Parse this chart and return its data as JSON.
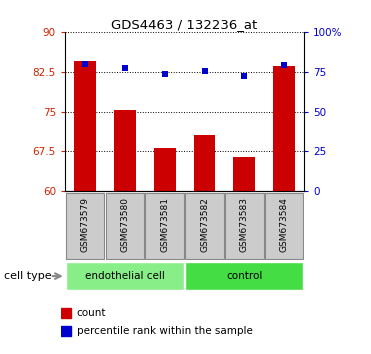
{
  "title": "GDS4463 / 132236_at",
  "samples": [
    "GSM673579",
    "GSM673580",
    "GSM673581",
    "GSM673582",
    "GSM673583",
    "GSM673584"
  ],
  "bar_values": [
    84.5,
    75.2,
    68.2,
    70.5,
    66.5,
    83.5
  ],
  "pct_right_axis": [
    80.0,
    77.0,
    73.5,
    75.5,
    72.5,
    79.0
  ],
  "bar_color": "#cc0000",
  "dot_color": "#0000cc",
  "ylim_left": [
    60,
    90
  ],
  "ylim_right": [
    0,
    100
  ],
  "yticks_left": [
    60,
    67.5,
    75,
    82.5,
    90
  ],
  "ytick_labels_left": [
    "60",
    "67.5",
    "75",
    "82.5",
    "90"
  ],
  "yticks_right": [
    0,
    25,
    50,
    75,
    100
  ],
  "ytick_labels_right": [
    "0",
    "25",
    "50",
    "75",
    "100%"
  ],
  "groups": [
    {
      "label": "endothelial cell",
      "n": 3,
      "color": "#88ee88"
    },
    {
      "label": "control",
      "n": 3,
      "color": "#44dd44"
    }
  ],
  "cell_type_label": "cell type",
  "legend_bar_label": "count",
  "legend_dot_label": "percentile rank within the sample",
  "bg_color": "#ffffff",
  "bar_color_legend": "#cc0000",
  "dot_color_legend": "#0000cc",
  "bar_width": 0.55,
  "dot_size": 25,
  "tick_color_left": "#cc2200",
  "tick_color_right": "#0000cc",
  "sample_box_color": "#cccccc",
  "sample_box_edge": "#888888"
}
